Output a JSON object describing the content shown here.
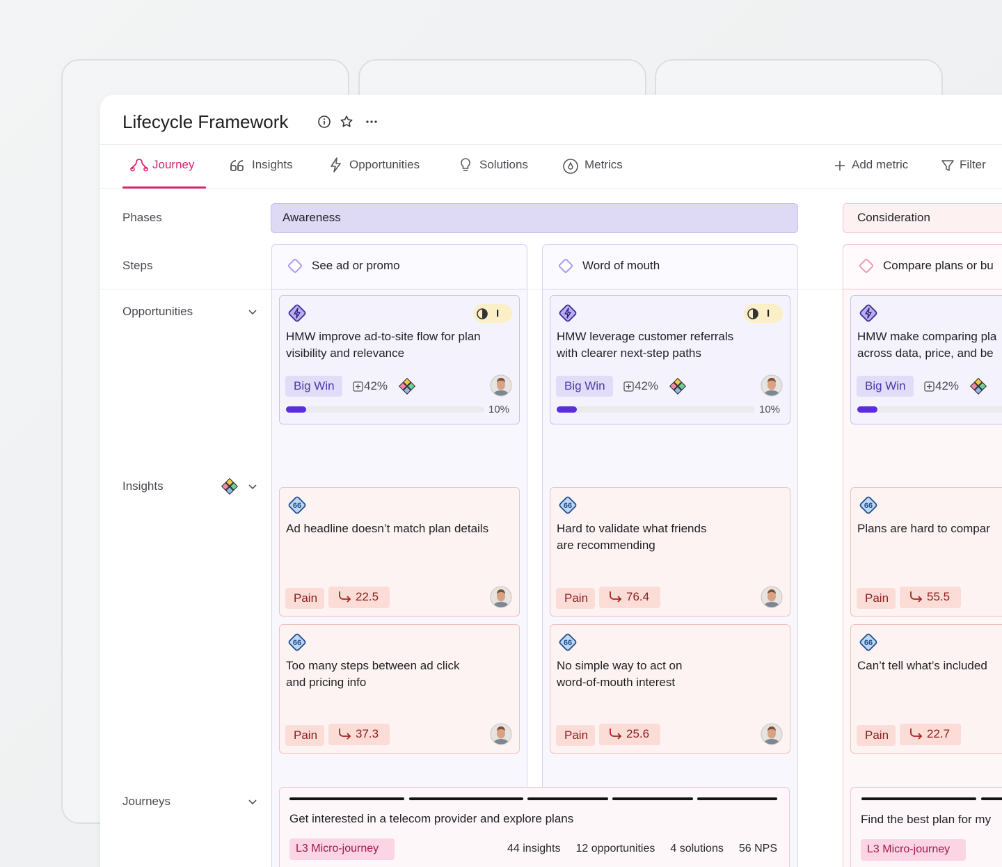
{
  "header": {
    "title": "Lifecycle Framework"
  },
  "tabs": [
    "Journey",
    "Insights",
    "Opportunities",
    "Solutions",
    "Metrics"
  ],
  "actions": [
    "Add metric",
    "Filter"
  ],
  "row_labels": [
    "Phases",
    "Steps",
    "Opportunities",
    "Insights",
    "Journeys"
  ],
  "phases": [
    "Awareness",
    "Consideration"
  ],
  "columns": [
    {
      "step": "See ad or promo",
      "opportunity": {
        "title": [
          "HMW improve ad-to-site flow for plan",
          "visibility and relevance"
        ],
        "badge": "I",
        "tag": "Big Win",
        "stat": "42%",
        "progress": 10,
        "progress_label": "10%"
      },
      "insights": [
        {
          "text": [
            "Ad headline doesn’t match plan details"
          ],
          "tag": "Pain",
          "score": 22.5
        },
        {
          "text": [
            "Too many steps between ad click",
            "and pricing info"
          ],
          "tag": "Pain",
          "score": 37.3
        }
      ]
    },
    {
      "step": "Word of mouth",
      "opportunity": {
        "title": [
          "HMW leverage customer referrals",
          "with clearer next-step paths"
        ],
        "badge": "I",
        "tag": "Big Win",
        "stat": "42%",
        "progress": 10,
        "progress_label": "10%"
      },
      "insights": [
        {
          "text": [
            "Hard to validate what friends",
            "are recommending"
          ],
          "tag": "Pain",
          "score": 76.4
        },
        {
          "text": [
            "No simple way to act on",
            "word-of-mouth interest"
          ],
          "tag": "Pain",
          "score": 25.6
        }
      ]
    },
    {
      "step": "Compare plans or bu",
      "opportunity": {
        "title": [
          "HMW make comparing pla",
          "across data, price, and be"
        ],
        "tag": "Big Win",
        "stat": "42%",
        "progress": 10
      },
      "insights": [
        {
          "text": [
            "Plans are hard to compar"
          ],
          "tag": "Pain",
          "score": 55.5
        },
        {
          "text": [
            "Can’t tell what’s included"
          ],
          "tag": "Pain",
          "score": 22.7
        }
      ]
    }
  ],
  "journeys": [
    {
      "text": "Get interested in a telecom provider and explore plans",
      "tag": "L3 Micro-journey",
      "stats": [
        "44 insights",
        "12 opportunities",
        "4 solutions",
        "56 NPS"
      ]
    },
    {
      "text": "Find the best plan for my",
      "tag": "L3 Micro-journey"
    }
  ]
}
